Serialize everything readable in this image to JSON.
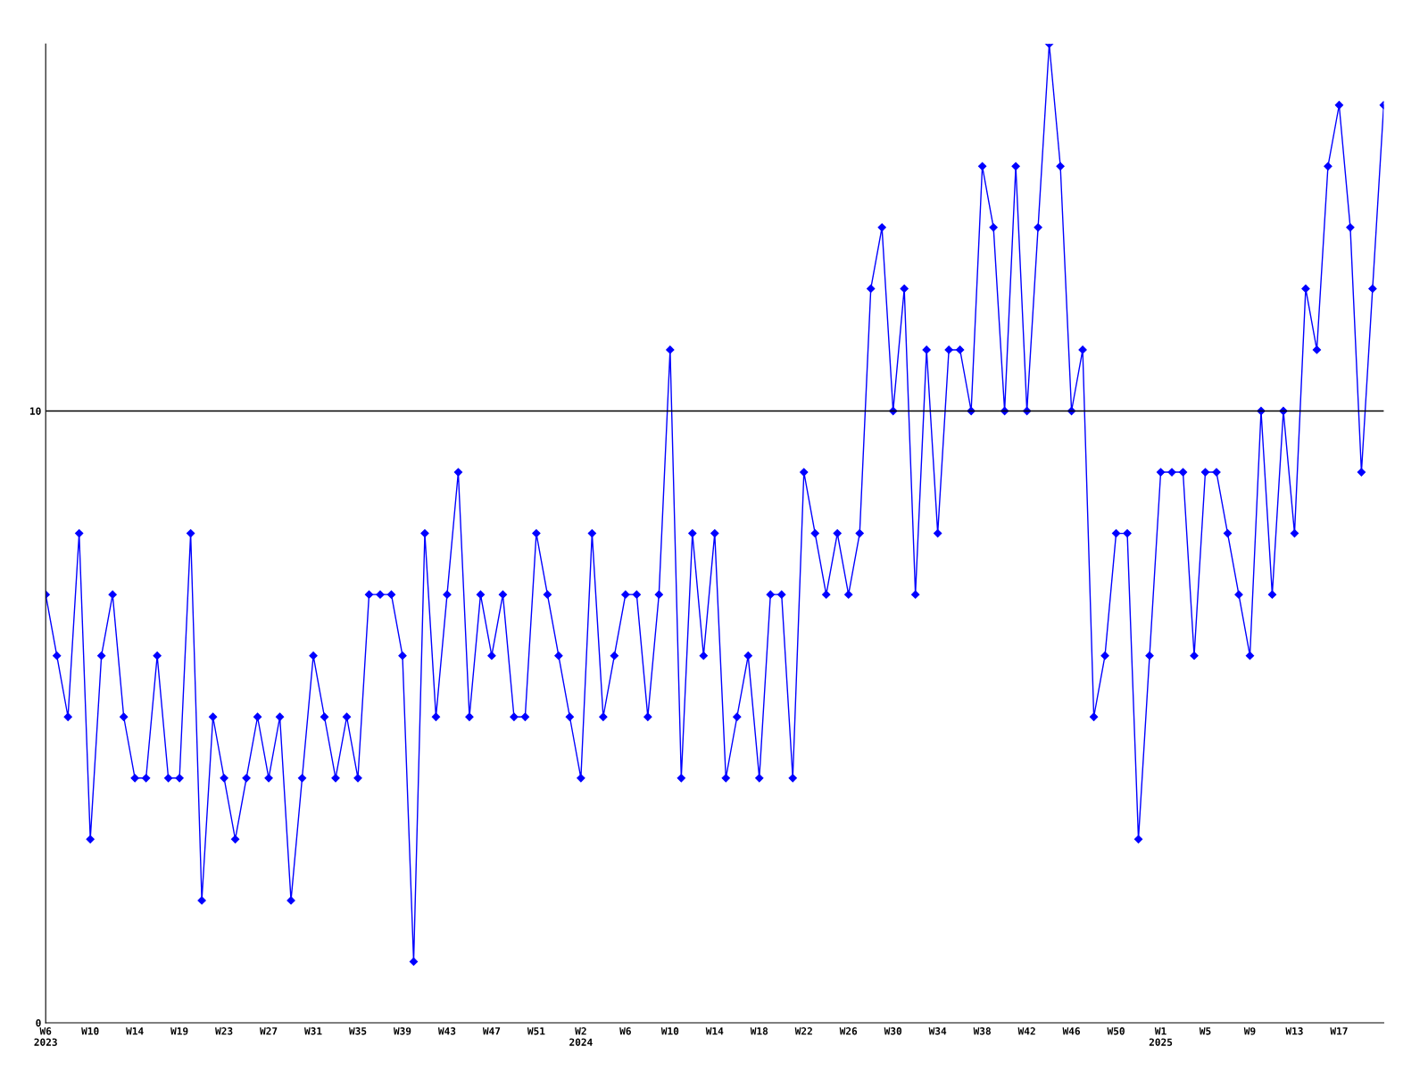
{
  "chart_data": {
    "type": "line",
    "categories": [
      "W6\n2023",
      null,
      null,
      null,
      "W10",
      null,
      null,
      null,
      "W14",
      null,
      null,
      null,
      "W19",
      null,
      null,
      null,
      "W23",
      null,
      null,
      null,
      "W27",
      null,
      null,
      null,
      "W31",
      null,
      null,
      null,
      "W35",
      null,
      null,
      null,
      "W39",
      null,
      null,
      null,
      "W43",
      null,
      null,
      null,
      "W47",
      null,
      null,
      null,
      "W51",
      null,
      null,
      null,
      "W2\n2024",
      null,
      null,
      null,
      "W6",
      null,
      null,
      null,
      "W10",
      null,
      null,
      null,
      "W14",
      null,
      null,
      null,
      "W18",
      null,
      null,
      null,
      "W22",
      null,
      null,
      null,
      "W26",
      null,
      null,
      null,
      "W30",
      null,
      null,
      null,
      "W34",
      null,
      null,
      null,
      "W38",
      null,
      null,
      null,
      "W42",
      null,
      null,
      null,
      "W46",
      null,
      null,
      null,
      "W50",
      null,
      null,
      null,
      "W1\n2025",
      null,
      null,
      null,
      "W5",
      null,
      null,
      null,
      "W9",
      null,
      null,
      null,
      "W13",
      null,
      null,
      null,
      "W17",
      null,
      null,
      null,
      null
    ],
    "series": [
      {
        "color": "#0000ff",
        "values": [
          7,
          6,
          5,
          8,
          3,
          6,
          7,
          5,
          4,
          4,
          6,
          4,
          4,
          8,
          2,
          5,
          4,
          3,
          4,
          5,
          4,
          5,
          2,
          4,
          6,
          5,
          4,
          5,
          4,
          7,
          7,
          7,
          6,
          1,
          8,
          5,
          7,
          9,
          5,
          7,
          6,
          7,
          5,
          5,
          8,
          7,
          6,
          5,
          4,
          8,
          5,
          6,
          7,
          7,
          5,
          7,
          11,
          4,
          8,
          6,
          8,
          4,
          5,
          6,
          4,
          7,
          7,
          4,
          9,
          8,
          7,
          8,
          7,
          8,
          12,
          13,
          10,
          12,
          7,
          11,
          8,
          11,
          11,
          10,
          14,
          13,
          10,
          14,
          10,
          13,
          16,
          14,
          10,
          11,
          5,
          6,
          8,
          8,
          3,
          6,
          9,
          9,
          9,
          6,
          9,
          9,
          8,
          7,
          6,
          10,
          7,
          10,
          8,
          12,
          11,
          14,
          15,
          13,
          9,
          12,
          15
        ]
      }
    ],
    "ylim": [
      0,
      16
    ],
    "yticks": [
      0,
      10
    ],
    "ref_lines": [
      {
        "axis": "y",
        "value": 10,
        "color": "#000000"
      }
    ],
    "marker": "diamond",
    "grid": false,
    "legend": false
  }
}
